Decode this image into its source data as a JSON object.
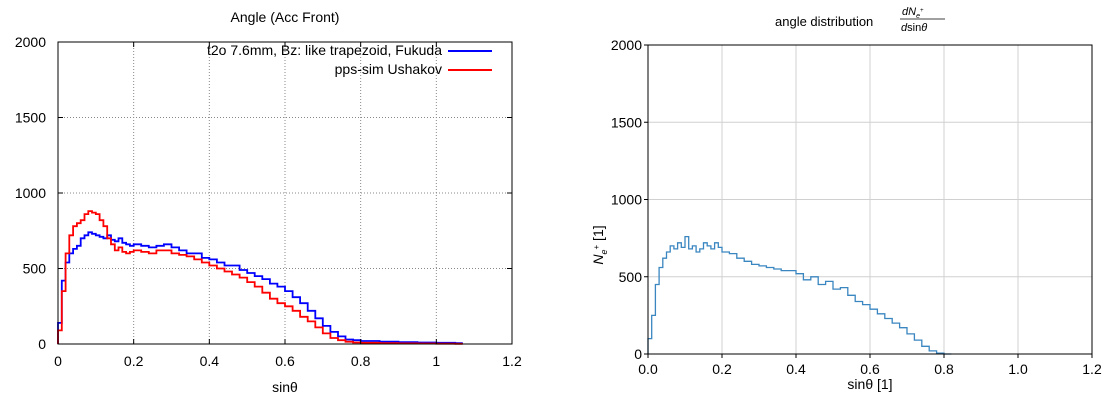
{
  "chart_data": [
    {
      "type": "line",
      "step": true,
      "title": "Angle (Acc Front)",
      "xlabel": "sinθ",
      "ylabel": "",
      "xlim": [
        0,
        1.2
      ],
      "ylim": [
        0,
        2000
      ],
      "xticks": [
        "0",
        "0.2",
        "0.4",
        "0.6",
        "0.8",
        "1",
        "1.2"
      ],
      "yticks": [
        "0",
        "500",
        "1000",
        "1500",
        "2000"
      ],
      "grid": true,
      "legend": "top-right",
      "series": [
        {
          "name": "t2o 7.6mm, Bz: like trapezoid, Fukuda",
          "color": "#0000ff",
          "x": [
            0.0,
            0.01,
            0.02,
            0.03,
            0.04,
            0.05,
            0.06,
            0.07,
            0.08,
            0.09,
            0.1,
            0.11,
            0.12,
            0.13,
            0.14,
            0.15,
            0.16,
            0.17,
            0.18,
            0.19,
            0.2,
            0.22,
            0.24,
            0.26,
            0.28,
            0.3,
            0.32,
            0.34,
            0.36,
            0.38,
            0.4,
            0.42,
            0.44,
            0.46,
            0.48,
            0.5,
            0.52,
            0.54,
            0.56,
            0.58,
            0.6,
            0.62,
            0.64,
            0.66,
            0.68,
            0.7,
            0.72,
            0.74,
            0.76,
            0.78,
            0.8,
            0.85,
            0.9,
            0.95,
            1.0,
            1.05
          ],
          "y": [
            140,
            420,
            540,
            600,
            630,
            650,
            700,
            720,
            740,
            730,
            720,
            710,
            700,
            720,
            690,
            680,
            700,
            670,
            660,
            650,
            660,
            650,
            640,
            650,
            660,
            640,
            620,
            600,
            600,
            570,
            560,
            540,
            520,
            520,
            490,
            470,
            450,
            430,
            400,
            380,
            350,
            310,
            270,
            220,
            170,
            120,
            80,
            50,
            30,
            25,
            20,
            15,
            12,
            10,
            8,
            5
          ]
        },
        {
          "name": "pps-sim Ushakov",
          "color": "#ff0000",
          "x": [
            0.0,
            0.01,
            0.02,
            0.03,
            0.04,
            0.05,
            0.06,
            0.07,
            0.08,
            0.09,
            0.1,
            0.11,
            0.12,
            0.13,
            0.14,
            0.15,
            0.16,
            0.17,
            0.18,
            0.19,
            0.2,
            0.22,
            0.24,
            0.26,
            0.28,
            0.3,
            0.32,
            0.34,
            0.36,
            0.38,
            0.4,
            0.42,
            0.44,
            0.46,
            0.48,
            0.5,
            0.52,
            0.54,
            0.56,
            0.58,
            0.6,
            0.62,
            0.64,
            0.66,
            0.68,
            0.7,
            0.72,
            0.74,
            0.76,
            0.78,
            0.8,
            0.85,
            0.9,
            0.95,
            1.0,
            1.05
          ],
          "y": [
            90,
            350,
            600,
            720,
            780,
            800,
            820,
            860,
            880,
            870,
            860,
            820,
            780,
            700,
            660,
            620,
            640,
            610,
            600,
            610,
            620,
            610,
            600,
            620,
            620,
            600,
            590,
            580,
            560,
            540,
            520,
            500,
            480,
            460,
            440,
            410,
            380,
            340,
            300,
            270,
            250,
            220,
            180,
            150,
            110,
            70,
            40,
            25,
            15,
            10,
            8,
            5,
            4,
            3,
            2,
            1
          ]
        }
      ]
    },
    {
      "type": "line",
      "step": true,
      "title": "angle distribution",
      "title_math": {
        "num_d": "d",
        "num_N": "N",
        "num_sub": "e",
        "num_sup": "+",
        "den_d": "d",
        "den_sin": "sin",
        "den_theta": "θ"
      },
      "xlabel": "sinθ [1]",
      "ylabel_main": "N",
      "ylabel_sub": "e",
      "ylabel_sup": "+",
      "ylabel_unit": " [1]",
      "xlim": [
        0,
        1.2
      ],
      "ylim": [
        0,
        2000
      ],
      "xticks": [
        "0.0",
        "0.2",
        "0.4",
        "0.6",
        "0.8",
        "1.0",
        "1.2"
      ],
      "yticks": [
        "0",
        "500",
        "1000",
        "1500",
        "2000"
      ],
      "grid": true,
      "series": [
        {
          "color": "#3a86c0",
          "x": [
            0.0,
            0.01,
            0.02,
            0.03,
            0.04,
            0.05,
            0.06,
            0.07,
            0.08,
            0.09,
            0.1,
            0.11,
            0.12,
            0.13,
            0.14,
            0.15,
            0.16,
            0.17,
            0.18,
            0.19,
            0.2,
            0.22,
            0.24,
            0.26,
            0.28,
            0.3,
            0.32,
            0.34,
            0.36,
            0.38,
            0.4,
            0.42,
            0.44,
            0.46,
            0.48,
            0.5,
            0.52,
            0.54,
            0.56,
            0.58,
            0.6,
            0.62,
            0.64,
            0.66,
            0.68,
            0.7,
            0.72,
            0.74,
            0.76,
            0.78,
            0.8
          ],
          "y": [
            100,
            250,
            450,
            560,
            620,
            660,
            700,
            680,
            720,
            690,
            760,
            680,
            700,
            660,
            680,
            720,
            700,
            680,
            720,
            690,
            660,
            650,
            620,
            600,
            580,
            570,
            560,
            550,
            540,
            540,
            520,
            480,
            500,
            450,
            470,
            420,
            430,
            380,
            340,
            320,
            290,
            260,
            230,
            200,
            170,
            130,
            90,
            50,
            20,
            5,
            0
          ]
        }
      ]
    }
  ]
}
